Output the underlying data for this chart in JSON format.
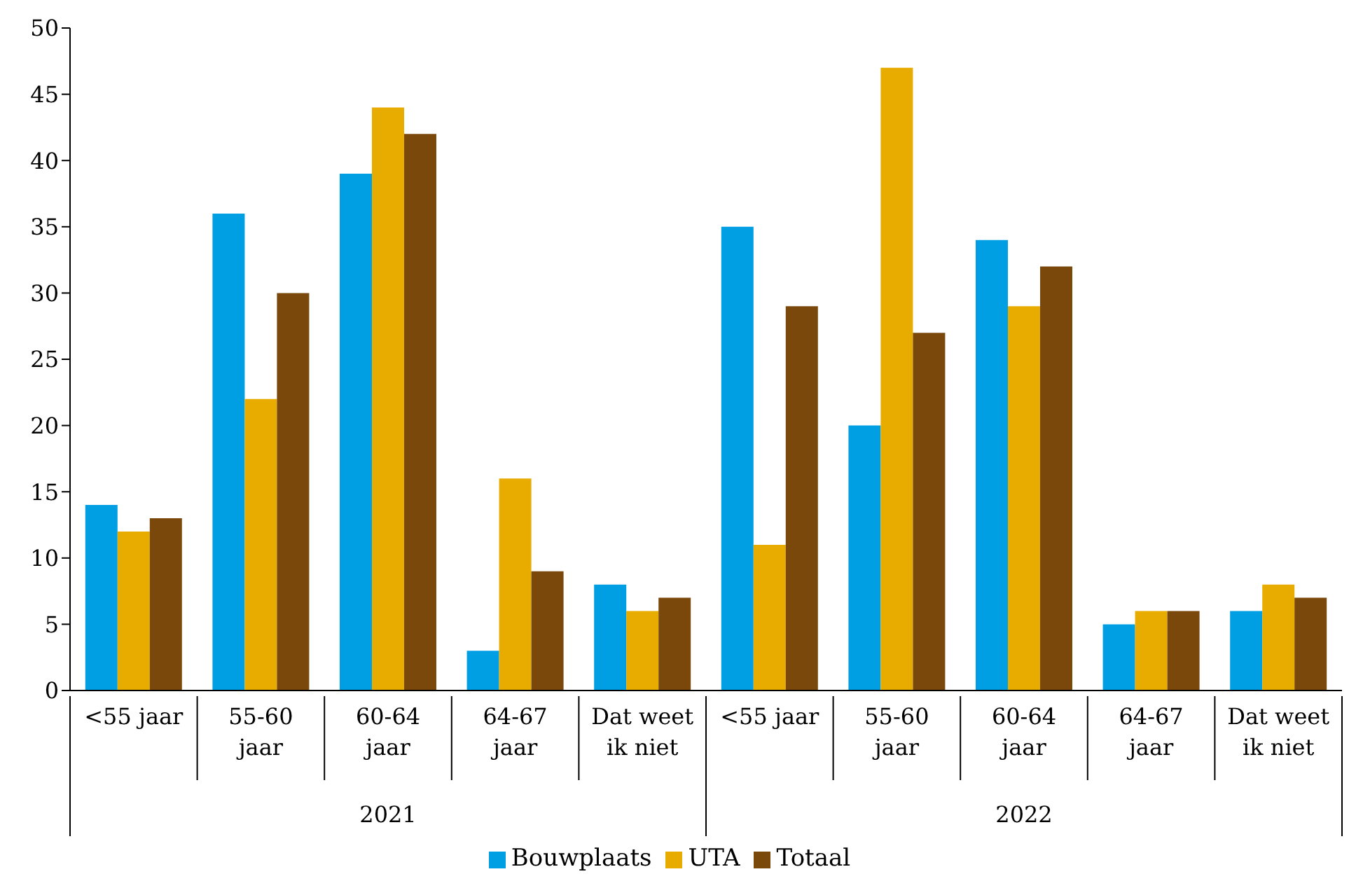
{
  "chart_data": {
    "type": "bar",
    "categories": [
      "<55 jaar",
      "55-60 jaar",
      "60-64 jaar",
      "64-67 jaar",
      "Dat weet ik niet",
      "<55 jaar",
      "55-60 jaar",
      "60-64 jaar",
      "64-67 jaar",
      "Dat weet ik niet"
    ],
    "series": [
      {
        "name": "Bouwplaats",
        "color": "#009fe3",
        "values": [
          14,
          36,
          39,
          3,
          8,
          35,
          20,
          34,
          5,
          6
        ]
      },
      {
        "name": "UTA",
        "color": "#e8ac00",
        "values": [
          12,
          22,
          44,
          16,
          6,
          11,
          47,
          29,
          6,
          8
        ]
      },
      {
        "name": "Totaal",
        "color": "#7b480c",
        "values": [
          13,
          30,
          42,
          9,
          7,
          29,
          27,
          32,
          6,
          7
        ]
      }
    ],
    "annotations": [
      "2021",
      "2022"
    ],
    "ylim": [
      0,
      50
    ],
    "yticks": [
      0,
      5,
      10,
      15,
      20,
      25,
      30,
      35,
      40,
      45,
      50
    ],
    "legend": "bottom"
  }
}
